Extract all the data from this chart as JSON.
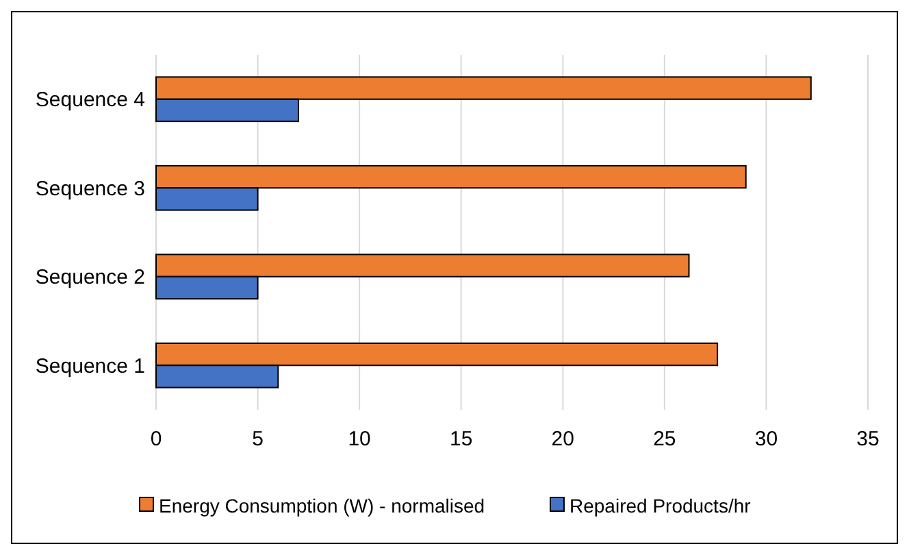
{
  "chart_data": {
    "type": "bar",
    "orientation": "horizontal",
    "categories": [
      "Sequence 4",
      "Sequence 3",
      "Sequence 2",
      "Sequence 1"
    ],
    "series": [
      {
        "name": "Energy Consumption (W) - normalised",
        "color": "#ed7d31",
        "values": [
          32.2,
          29.0,
          26.2,
          27.6
        ]
      },
      {
        "name": "Repaired Products/hr",
        "color": "#4472c4",
        "values": [
          7,
          5,
          5,
          6
        ]
      }
    ],
    "xlim": [
      0,
      35
    ],
    "xticks": [
      0,
      5,
      10,
      15,
      20,
      25,
      30,
      35
    ],
    "grid": "x",
    "legend": "bottom"
  }
}
